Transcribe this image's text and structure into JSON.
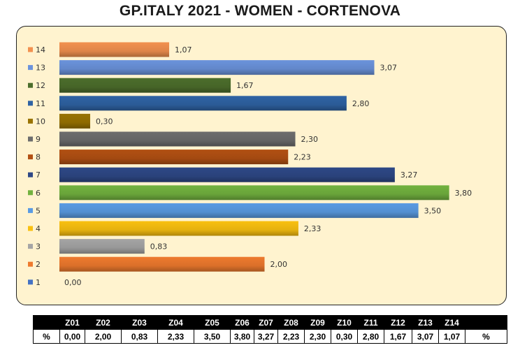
{
  "title": "GP.ITALY 2021 - WOMEN - CORTENOVA",
  "chart_data": {
    "type": "bar",
    "orientation": "horizontal",
    "categories": [
      "14",
      "13",
      "12",
      "11",
      "10",
      "9",
      "8",
      "7",
      "6",
      "5",
      "4",
      "3",
      "2",
      "1"
    ],
    "values": [
      1.07,
      3.07,
      1.67,
      2.8,
      0.3,
      2.3,
      2.23,
      3.27,
      3.8,
      3.5,
      2.33,
      0.83,
      2.0,
      0.0
    ],
    "value_labels": [
      "1,07",
      "3,07",
      "1,67",
      "2,80",
      "0,30",
      "2,30",
      "2,23",
      "3,27",
      "3,80",
      "3,50",
      "2,33",
      "0,83",
      "2,00",
      "0,00"
    ],
    "colors": [
      "#f2914f",
      "#6b93dc",
      "#4c6e2c",
      "#2f63a4",
      "#997300",
      "#6d6d6d",
      "#b25013",
      "#2e4886",
      "#72b23f",
      "#5a9be3",
      "#f9c010",
      "#a5a5a5",
      "#ee7a2e",
      "#4472c4"
    ],
    "xlim": [
      0,
      4
    ],
    "legend": "left",
    "grid": false
  },
  "table": {
    "headers": [
      "",
      "Z01",
      "Z02",
      "Z03",
      "Z04",
      "Z05",
      "Z06",
      "Z07",
      "Z08",
      "Z09",
      "Z10",
      "Z11",
      "Z12",
      "Z13",
      "Z14",
      ""
    ],
    "row": [
      "%",
      "0,00",
      "2,00",
      "0,83",
      "2,33",
      "3,50",
      "3,80",
      "3,27",
      "2,23",
      "2,30",
      "0,30",
      "2,80",
      "1,67",
      "3,07",
      "1,07",
      "%"
    ]
  }
}
